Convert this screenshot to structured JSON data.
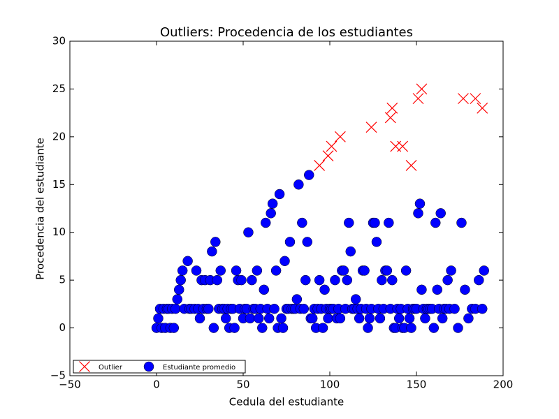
{
  "chart_data": {
    "type": "scatter",
    "title": "Outliers: Procedencia de los estudiantes",
    "xlabel": "Cedula del estudiante",
    "ylabel": "Procedencia del estudiante",
    "xlim": [
      -50,
      200
    ],
    "ylim": [
      -5,
      30
    ],
    "xticks": [
      {
        "value": -50,
        "label": "−50"
      },
      0,
      50,
      100,
      150,
      200
    ],
    "yticks": [
      {
        "value": -5,
        "label": "−5"
      },
      0,
      5,
      10,
      15,
      20,
      25,
      30
    ],
    "legend": "lower left",
    "series": [
      {
        "name": "Outlier",
        "color": "#ff0000",
        "marker": "x",
        "x": [
          94,
          99,
          101,
          106,
          124,
          135,
          136,
          138,
          142,
          147,
          151,
          153,
          177,
          184,
          188
        ],
        "values": [
          17,
          18,
          19,
          20,
          21,
          22,
          23,
          19,
          19,
          17,
          24,
          25,
          24,
          24,
          23
        ]
      },
      {
        "name": "Estudiante promedio",
        "color": "#0000ff",
        "marker": "o",
        "x": [
          0,
          1,
          2,
          3,
          4,
          5,
          6,
          7,
          8,
          9,
          10,
          11,
          12,
          13,
          14,
          15,
          16,
          18,
          19,
          20,
          22,
          23,
          24,
          25,
          26,
          27,
          28,
          29,
          30,
          31,
          32,
          33,
          34,
          35,
          36,
          37,
          38,
          39,
          40,
          41,
          42,
          43,
          44,
          45,
          46,
          47,
          48,
          49,
          50,
          51,
          52,
          53,
          54,
          55,
          56,
          57,
          58,
          59,
          60,
          61,
          62,
          63,
          64,
          65,
          66,
          67,
          68,
          69,
          70,
          71,
          72,
          73,
          74,
          75,
          76,
          77,
          78,
          79,
          80,
          81,
          82,
          83,
          84,
          85,
          86,
          87,
          88,
          89,
          90,
          91,
          92,
          93,
          94,
          95,
          96,
          97,
          98,
          99,
          100,
          101,
          102,
          103,
          104,
          105,
          106,
          107,
          108,
          109,
          110,
          111,
          112,
          113,
          114,
          115,
          116,
          117,
          118,
          119,
          120,
          121,
          122,
          123,
          124,
          125,
          126,
          127,
          128,
          129,
          130,
          131,
          132,
          133,
          134,
          135,
          136,
          137,
          138,
          139,
          140,
          141,
          142,
          143,
          144,
          145,
          146,
          147,
          148,
          149,
          150,
          151,
          152,
          153,
          154,
          155,
          156,
          157,
          158,
          159,
          160,
          161,
          162,
          163,
          164,
          165,
          166,
          167,
          168,
          169,
          170,
          172,
          174,
          176,
          178,
          180,
          182,
          184,
          186,
          188,
          189
        ],
        "values": [
          0,
          1,
          2,
          0,
          2,
          0,
          2,
          2,
          0,
          2,
          0,
          2,
          3,
          4,
          5,
          6,
          2,
          7,
          2,
          2,
          2,
          6,
          2,
          1,
          5,
          2,
          5,
          2,
          2,
          5,
          8,
          0,
          9,
          5,
          2,
          6,
          2,
          2,
          1,
          2,
          0,
          2,
          2,
          0,
          6,
          5,
          2,
          5,
          1,
          2,
          2,
          10,
          1,
          5,
          2,
          2,
          6,
          1,
          2,
          0,
          4,
          11,
          2,
          1,
          12,
          13,
          2,
          6,
          0,
          14,
          1,
          0,
          7,
          2,
          2,
          9,
          2,
          2,
          2,
          3,
          15,
          2,
          11,
          2,
          5,
          9,
          16,
          1,
          1,
          2,
          0,
          2,
          5,
          2,
          0,
          4,
          2,
          1,
          2,
          2,
          2,
          5,
          1,
          2,
          1,
          6,
          6,
          2,
          5,
          11,
          8,
          2,
          2,
          3,
          2,
          1,
          2,
          6,
          6,
          2,
          0,
          1,
          2,
          11,
          11,
          9,
          2,
          1,
          5,
          2,
          6,
          6,
          11,
          2,
          5,
          0,
          0,
          2,
          1,
          2,
          0,
          0,
          6,
          2,
          1,
          0,
          2,
          2,
          2,
          12,
          13,
          4,
          2,
          1,
          2,
          2,
          2,
          2,
          0,
          11,
          4,
          2,
          12,
          1,
          2,
          2,
          5,
          2,
          6,
          2,
          0,
          11,
          4,
          1,
          2,
          2,
          5,
          2,
          6
        ]
      }
    ]
  }
}
